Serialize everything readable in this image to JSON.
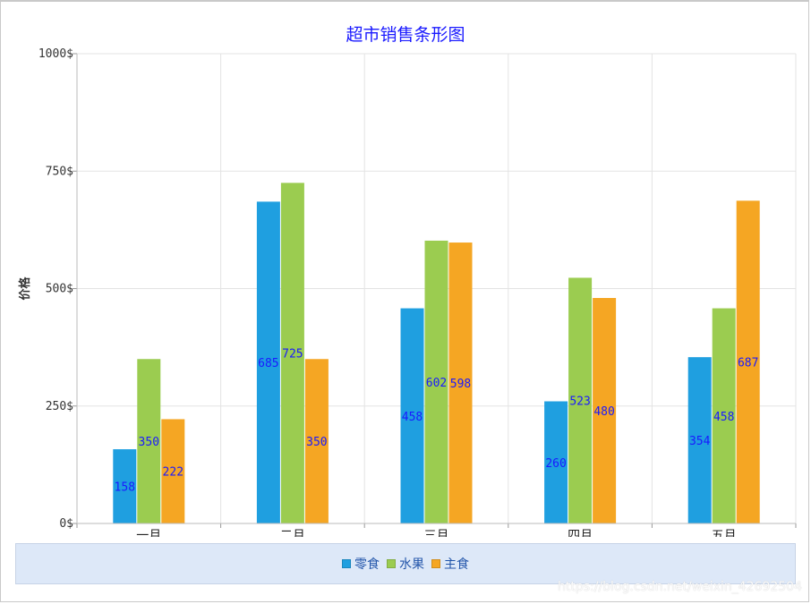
{
  "chart_data": {
    "type": "bar",
    "title": "超市销售条形图",
    "xlabel": "",
    "ylabel": "价格",
    "ylim": [
      0,
      1000
    ],
    "yticks": [
      "0$",
      "250$",
      "500$",
      "750$",
      "1000$"
    ],
    "categories": [
      "一月",
      "二月",
      "三月",
      "四月",
      "五月"
    ],
    "series": [
      {
        "name": "零食",
        "color": "#1f9fe0",
        "values": [
          158,
          685,
          458,
          260,
          354
        ]
      },
      {
        "name": "水果",
        "color": "#9bcc50",
        "values": [
          350,
          725,
          602,
          523,
          458
        ]
      },
      {
        "name": "主食",
        "color": "#f5a623",
        "values": [
          222,
          350,
          598,
          480,
          687
        ]
      }
    ],
    "grid": true,
    "legend_position": "bottom",
    "label_color": "#1a1aff"
  },
  "watermark": "https://blog.csdn.net/weixin_42692504"
}
